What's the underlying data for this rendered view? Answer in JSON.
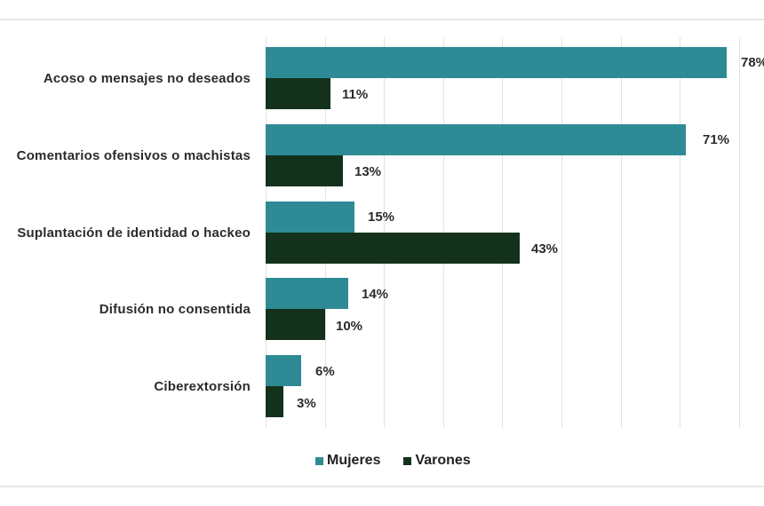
{
  "colors": {
    "mujeres": "#2E8B95",
    "varones": "#13311B"
  },
  "legend": [
    {
      "label": "Mujeres",
      "color": "#2E8B95"
    },
    {
      "label": "Varones",
      "color": "#13311B"
    }
  ],
  "labels": {
    "c0": {
      "name": "Acoso o mensajes no deseados",
      "m": "78%",
      "v": "11%"
    },
    "c1": {
      "name": "Comentarios ofensivos o machistas",
      "m": "71%",
      "v": "13%"
    },
    "c2": {
      "name": "Suplantación de identidad o hackeo",
      "m": "15%",
      "v": "43%"
    },
    "c3": {
      "name": "Difusión no consentida",
      "m": "14%",
      "v": "10%"
    },
    "c4": {
      "name": "Ciberextorsión",
      "m": "6%",
      "v": "3%"
    }
  },
  "chart_data": {
    "type": "bar",
    "orientation": "horizontal",
    "title": "",
    "xlabel": "",
    "ylabel": "",
    "categories": [
      "Acoso o mensajes no deseados",
      "Comentarios ofensivos o machistas",
      "Suplantación de identidad o hackeo",
      "Difusión no consentida",
      "Ciberextorsión"
    ],
    "series": [
      {
        "name": "Mujeres",
        "color": "#2E8B95",
        "values": [
          78,
          71,
          15,
          14,
          6
        ]
      },
      {
        "name": "Varones",
        "color": "#13311B",
        "values": [
          11,
          13,
          43,
          10,
          3
        ]
      }
    ],
    "value_format": "percent",
    "xlim": [
      0,
      80
    ],
    "grid": {
      "vertical": true,
      "interval": 10
    },
    "tick_labels_visible": false,
    "legend_position": "bottom"
  }
}
